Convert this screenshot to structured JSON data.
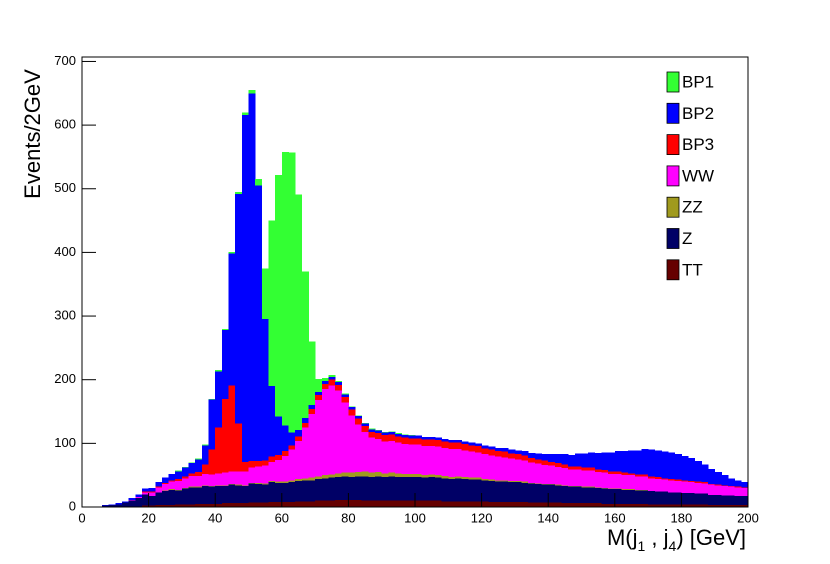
{
  "chart_data": {
    "type": "histogram",
    "ylabel": "Events/2GeV",
    "xlabel": [
      "M(j",
      "1",
      " , j",
      "4",
      ") [GeV]"
    ],
    "bins": [
      0,
      2,
      4,
      6,
      8,
      10,
      12,
      14,
      16,
      18,
      20,
      22,
      24,
      26,
      28,
      30,
      32,
      34,
      36,
      38,
      40,
      42,
      44,
      46,
      48,
      50,
      52,
      54,
      56,
      58,
      60,
      62,
      64,
      66,
      68,
      70,
      72,
      74,
      76,
      78,
      80,
      82,
      84,
      86,
      88,
      90,
      92,
      94,
      96,
      98,
      100,
      102,
      104,
      106,
      108,
      110,
      112,
      114,
      116,
      118,
      120,
      122,
      124,
      126,
      128,
      130,
      132,
      134,
      136,
      138,
      140,
      142,
      144,
      146,
      148,
      150,
      152,
      154,
      156,
      158,
      160,
      162,
      164,
      166,
      168,
      170,
      172,
      174,
      176,
      178,
      180,
      182,
      184,
      186,
      188,
      190,
      192,
      194,
      196,
      198,
      200
    ],
    "xlim": [
      0,
      200
    ],
    "xticks": [
      0,
      20,
      40,
      60,
      80,
      100,
      120,
      140,
      160,
      180,
      200
    ],
    "ylim": [
      0,
      707
    ],
    "yticks": [
      0,
      100,
      200,
      300,
      400,
      500,
      600,
      700
    ],
    "stacked": true,
    "legend": "upper right",
    "series": [
      {
        "name": "BP1",
        "color": "#33ff33",
        "values": [
          0,
          0,
          0,
          0,
          0,
          0,
          0,
          0,
          0,
          0,
          0,
          0,
          0,
          0,
          1,
          1,
          1,
          1,
          1,
          1,
          2,
          2,
          3,
          3,
          4,
          5,
          10,
          80,
          260,
          380,
          430,
          440,
          370,
          230,
          100,
          20,
          5,
          3,
          2,
          1,
          1,
          1,
          1,
          1,
          1,
          1,
          1,
          1,
          1,
          1,
          0,
          0,
          0,
          0,
          0,
          0,
          0,
          0,
          0,
          0,
          0,
          0,
          0,
          0,
          0,
          0,
          0,
          0,
          0,
          0,
          0,
          0,
          0,
          0,
          0,
          0,
          0,
          0,
          0,
          0,
          0,
          0,
          0,
          0,
          0,
          0,
          0,
          0,
          0,
          0,
          0,
          0,
          0,
          0,
          0,
          0,
          0,
          0,
          0,
          0
        ]
      },
      {
        "name": "BP2",
        "color": "#0000ff",
        "values": [
          0,
          0,
          0,
          1,
          1,
          2,
          2,
          3,
          4,
          5,
          6,
          7,
          8,
          10,
          12,
          14,
          16,
          20,
          30,
          79,
          88,
          108,
          207,
          361,
          545,
          578,
          433,
          222,
          111,
          60,
          40,
          20,
          10,
          8,
          6,
          5,
          5,
          4,
          4,
          4,
          4,
          4,
          4,
          4,
          4,
          4,
          4,
          4,
          4,
          4,
          4,
          4,
          4,
          4,
          4,
          4,
          4,
          4,
          4,
          4,
          5,
          5,
          5,
          6,
          6,
          6,
          7,
          8,
          9,
          10,
          12,
          14,
          16,
          18,
          20,
          22,
          24,
          26,
          28,
          30,
          32,
          34,
          36,
          38,
          40,
          42,
          42,
          42,
          42,
          40,
          38,
          36,
          32,
          28,
          24,
          20,
          16,
          12,
          10,
          8
        ]
      },
      {
        "name": "BP3",
        "color": "#ff0000",
        "values": [
          0,
          0,
          0,
          0,
          0,
          0,
          0,
          0,
          0,
          1,
          1,
          1,
          2,
          2,
          3,
          3,
          4,
          6,
          15,
          39,
          72,
          116,
          135,
          75,
          15,
          10,
          8,
          8,
          8,
          8,
          8,
          7,
          7,
          7,
          8,
          8,
          8,
          9,
          9,
          9,
          9,
          9,
          9,
          9,
          9,
          10,
          10,
          10,
          10,
          10,
          10,
          10,
          10,
          10,
          10,
          10,
          10,
          10,
          10,
          10,
          9,
          9,
          9,
          9,
          8,
          8,
          8,
          7,
          7,
          7,
          6,
          6,
          6,
          5,
          5,
          5,
          5,
          4,
          4,
          4,
          4,
          4,
          3,
          3,
          3,
          3,
          3,
          2,
          2,
          2,
          2,
          2,
          2,
          2,
          1,
          1,
          1,
          1,
          1,
          1
        ]
      },
      {
        "name": "WW",
        "color": "#ff00ff",
        "values": [
          0,
          0,
          0,
          0,
          0,
          0,
          0,
          1,
          2,
          3,
          6,
          8,
          10,
          12,
          14,
          15,
          17,
          17,
          18,
          18,
          19,
          20,
          20,
          21,
          22,
          24,
          26,
          28,
          30,
          34,
          40,
          48,
          60,
          80,
          100,
          120,
          135,
          140,
          130,
          110,
          90,
          75,
          62,
          55,
          52,
          50,
          50,
          48,
          47,
          46,
          46,
          46,
          45,
          45,
          44,
          44,
          43,
          42,
          41,
          40,
          39,
          38,
          37,
          36,
          35,
          34,
          33,
          32,
          31,
          30,
          29,
          28,
          27,
          26,
          26,
          25,
          25,
          24,
          24,
          23,
          23,
          22,
          22,
          21,
          21,
          20,
          20,
          19,
          19,
          18,
          18,
          17,
          17,
          16,
          16,
          15,
          15,
          14,
          14,
          13
        ]
      },
      {
        "name": "ZZ",
        "color": "#a09a1e",
        "values": [
          0,
          0,
          0,
          0,
          0,
          0,
          0,
          0,
          0,
          0,
          0,
          0,
          1,
          1,
          1,
          1,
          1,
          1,
          1,
          1,
          1,
          1,
          1,
          1,
          1,
          1,
          2,
          2,
          2,
          2,
          2,
          3,
          3,
          3,
          4,
          4,
          5,
          5,
          6,
          6,
          7,
          7,
          8,
          7,
          7,
          6,
          6,
          6,
          5,
          5,
          5,
          4,
          4,
          4,
          4,
          3,
          3,
          3,
          3,
          3,
          2,
          2,
          2,
          2,
          2,
          2,
          2,
          1,
          1,
          1,
          1,
          1,
          1,
          1,
          1,
          1,
          1,
          1,
          1,
          1,
          1,
          1,
          1,
          1,
          1,
          0,
          0,
          0,
          0,
          0,
          0,
          0,
          0,
          0,
          0,
          0,
          0,
          0,
          0,
          0
        ]
      },
      {
        "name": "Z",
        "color": "#000066",
        "values": [
          0,
          1,
          1,
          2,
          3,
          4,
          6,
          9,
          13,
          18,
          15,
          20,
          22,
          24,
          22,
          25,
          27,
          26,
          28,
          27,
          28,
          27,
          29,
          28,
          27,
          30,
          29,
          28,
          31,
          30,
          30,
          31,
          32,
          33,
          33,
          34,
          35,
          36,
          36,
          37,
          36,
          37,
          38,
          37,
          38,
          37,
          38,
          37,
          37,
          37,
          37,
          36,
          37,
          36,
          36,
          35,
          36,
          35,
          34,
          34,
          33,
          33,
          32,
          32,
          31,
          31,
          30,
          30,
          29,
          28,
          28,
          27,
          27,
          26,
          26,
          25,
          25,
          24,
          24,
          23,
          23,
          22,
          22,
          21,
          21,
          21,
          20,
          20,
          19,
          19,
          18,
          18,
          17,
          17,
          16,
          16,
          15,
          15,
          14,
          14
        ]
      },
      {
        "name": "TT",
        "color": "#660000",
        "values": [
          0,
          0,
          0,
          0,
          0,
          0,
          1,
          1,
          1,
          2,
          2,
          3,
          3,
          3,
          4,
          4,
          4,
          5,
          5,
          5,
          5,
          6,
          6,
          6,
          6,
          7,
          7,
          7,
          8,
          8,
          8,
          8,
          9,
          9,
          9,
          10,
          10,
          10,
          11,
          11,
          11,
          11,
          10,
          10,
          10,
          10,
          10,
          10,
          10,
          10,
          10,
          10,
          10,
          10,
          9,
          9,
          9,
          9,
          9,
          9,
          9,
          8,
          8,
          8,
          8,
          8,
          8,
          7,
          7,
          7,
          7,
          7,
          6,
          6,
          6,
          6,
          6,
          6,
          5,
          5,
          5,
          5,
          5,
          5,
          5,
          4,
          4,
          4,
          4,
          4,
          4,
          4,
          4,
          4,
          3,
          3,
          3,
          3,
          3,
          3
        ]
      }
    ]
  }
}
